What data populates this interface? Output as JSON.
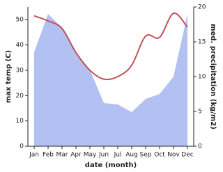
{
  "chart_data": {
    "type": "line",
    "x_label": "date (month)",
    "y_label": "max temp (C)",
    "y2_label": "med. precipitation (kg/m2)",
    "categories": [
      "Jan",
      "Feb",
      "Mar",
      "Apr",
      "May",
      "Jun",
      "Jul",
      "Aug",
      "Sep",
      "Oct",
      "Nov",
      "Dec"
    ],
    "series": [
      {
        "name": "max temp",
        "color": "#c0505a",
        "values": [
          51.5,
          49.5,
          46.5,
          37,
          30,
          26.5,
          27.5,
          32,
          43.5,
          43,
          52.5,
          47
        ]
      },
      {
        "name": "med. precipitation",
        "color": "#b3c0f2",
        "axis": "y2",
        "kind": "area",
        "values": [
          13.5,
          19,
          17,
          13.5,
          11,
          6.2,
          6,
          4.9,
          6.8,
          7.5,
          10,
          19
        ]
      }
    ],
    "ylim": [
      0,
      55
    ],
    "yticks": [
      0,
      10,
      20,
      30,
      40,
      50
    ],
    "y2lim": [
      0,
      20
    ],
    "y2ticks": [
      0,
      5,
      10,
      15,
      20
    ]
  }
}
